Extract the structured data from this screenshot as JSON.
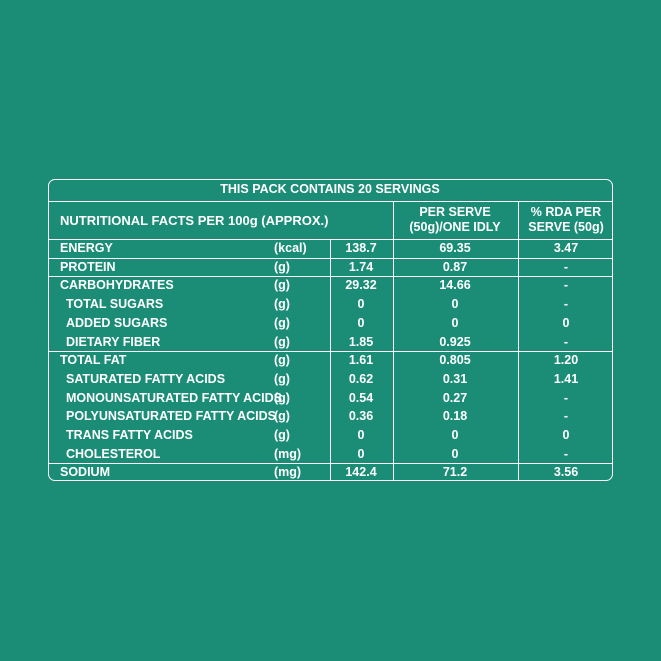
{
  "table": {
    "title": "THIS PACK CONTAINS 20 SERVINGS",
    "header": [
      "NUTRITIONAL FACTS  PER 100g (APPROX.)",
      "PER SERVE (50g)/ONE IDLY",
      "% RDA PER SERVE (50g)"
    ],
    "rows": [
      {
        "name": "ENERGY",
        "unit": "(kcal)",
        "per_100g": "138.7",
        "per_serve": "69.35",
        "rda": "3.47"
      },
      {
        "name": "PROTEIN",
        "unit": "(g)",
        "per_100g": "1.74",
        "per_serve": "0.87",
        "rda": "-"
      },
      {
        "name": "CARBOHYDRATES",
        "unit": "(g)",
        "per_100g": "29.32",
        "per_serve": "14.66",
        "rda": "-",
        "subrows": [
          {
            "name": "TOTAL SUGARS",
            "unit": "(g)",
            "per_100g": "0",
            "per_serve": "0",
            "rda": "-"
          },
          {
            "name": "ADDED SUGARS",
            "unit": "(g)",
            "per_100g": "0",
            "per_serve": "0",
            "rda": "0"
          },
          {
            "name": "DIETARY FIBER",
            "unit": "(g)",
            "per_100g": "1.85",
            "per_serve": "0.925",
            "rda": "-"
          }
        ]
      },
      {
        "name": "TOTAL FAT",
        "unit": "(g)",
        "per_100g": "1.61",
        "per_serve": "0.805",
        "rda": "1.20",
        "subrows": [
          {
            "name": "SATURATED FATTY ACIDS",
            "unit": "(g)",
            "per_100g": "0.62",
            "per_serve": "0.31",
            "rda": "1.41"
          },
          {
            "name": "MONOUNSATURATED FATTY ACIDS",
            "unit": "(g)",
            "per_100g": "0.54",
            "per_serve": "0.27",
            "rda": "-"
          },
          {
            "name": "POLYUNSATURATED FATTY ACIDS",
            "unit": "(g)",
            "per_100g": "0.36",
            "per_serve": "0.18",
            "rda": "-"
          },
          {
            "name": "TRANS FATTY ACIDS",
            "unit": "(g)",
            "per_100g": "0",
            "per_serve": "0",
            "rda": "0"
          },
          {
            "name": "CHOLESTEROL",
            "unit": "(mg)",
            "per_100g": "0",
            "per_serve": "0",
            "rda": "-"
          }
        ]
      },
      {
        "name": "SODIUM",
        "unit": "(mg)",
        "per_100g": "142.4",
        "per_serve": "71.2",
        "rda": "3.56"
      }
    ]
  }
}
